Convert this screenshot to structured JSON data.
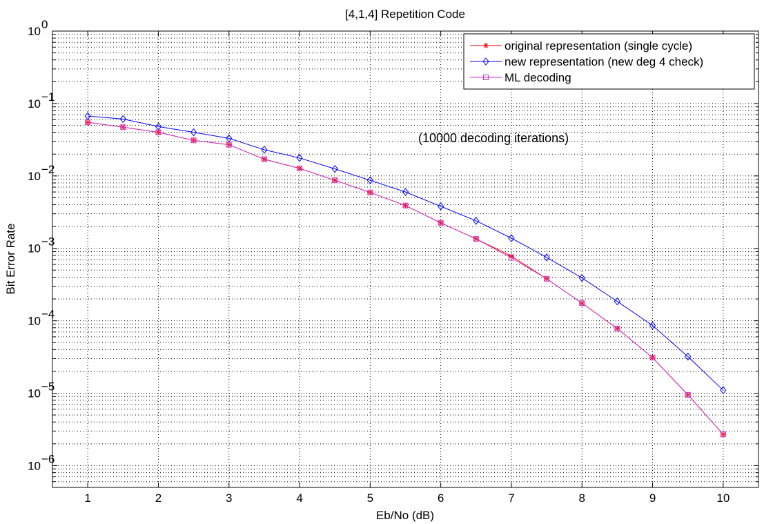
{
  "chart_data": {
    "type": "line",
    "title": "[4,1,4] Repetition Code",
    "xlabel": "Eb/No (dB)",
    "ylabel": "Bit Error Rate",
    "yscale": "log",
    "xlim": [
      0.5,
      10.5
    ],
    "ylim": [
      5e-07,
      1
    ],
    "grid": true,
    "legend_position": "top-right",
    "xticks": [
      1,
      2,
      3,
      4,
      5,
      6,
      7,
      8,
      9,
      10
    ],
    "yticks": [
      {
        "value": 1,
        "mantissa": "10",
        "exponent": "0"
      },
      {
        "value": 0.1,
        "mantissa": "10",
        "exponent": "−1"
      },
      {
        "value": 0.01,
        "mantissa": "10",
        "exponent": "−2"
      },
      {
        "value": 0.001,
        "mantissa": "10",
        "exponent": "−3"
      },
      {
        "value": 0.0001,
        "mantissa": "10",
        "exponent": "−4"
      },
      {
        "value": 1e-05,
        "mantissa": "10",
        "exponent": "−5"
      },
      {
        "value": 1e-06,
        "mantissa": "10",
        "exponent": "−6"
      }
    ],
    "annotation": "(10000 decoding iterations)",
    "x": [
      1,
      1.5,
      2,
      2.5,
      3,
      3.5,
      4,
      4.5,
      5,
      5.5,
      6,
      6.5,
      7,
      7.5,
      8,
      8.5,
      9,
      9.5,
      10
    ],
    "series": [
      {
        "name": "original representation (single cycle)",
        "color": "#ff0000",
        "marker": "asterisk",
        "values": [
          0.055,
          0.047,
          0.04,
          0.031,
          0.027,
          0.017,
          0.0127,
          0.0087,
          0.0059,
          0.0039,
          0.00225,
          0.00135,
          0.00078,
          0.00038,
          0.000175,
          7.8e-05,
          3.1e-05,
          9.5e-06,
          2.7e-06
        ]
      },
      {
        "name": "new representation (new deg 4 check)",
        "color": "#0000ff",
        "marker": "diamond",
        "values": [
          0.067,
          0.061,
          0.048,
          0.04,
          0.033,
          0.023,
          0.0177,
          0.0125,
          0.0087,
          0.006,
          0.0038,
          0.0024,
          0.00138,
          0.00075,
          0.00039,
          0.000185,
          8.6e-05,
          3.2e-05,
          1.1e-05
        ]
      },
      {
        "name": "ML decoding",
        "color": "#cc33cc",
        "marker": "square",
        "values": [
          0.055,
          0.047,
          0.04,
          0.031,
          0.027,
          0.017,
          0.0127,
          0.0087,
          0.0059,
          0.0039,
          0.00225,
          0.00135,
          0.00074,
          0.00038,
          0.000175,
          7.8e-05,
          3.1e-05,
          9.5e-06,
          2.7e-06
        ]
      }
    ]
  }
}
